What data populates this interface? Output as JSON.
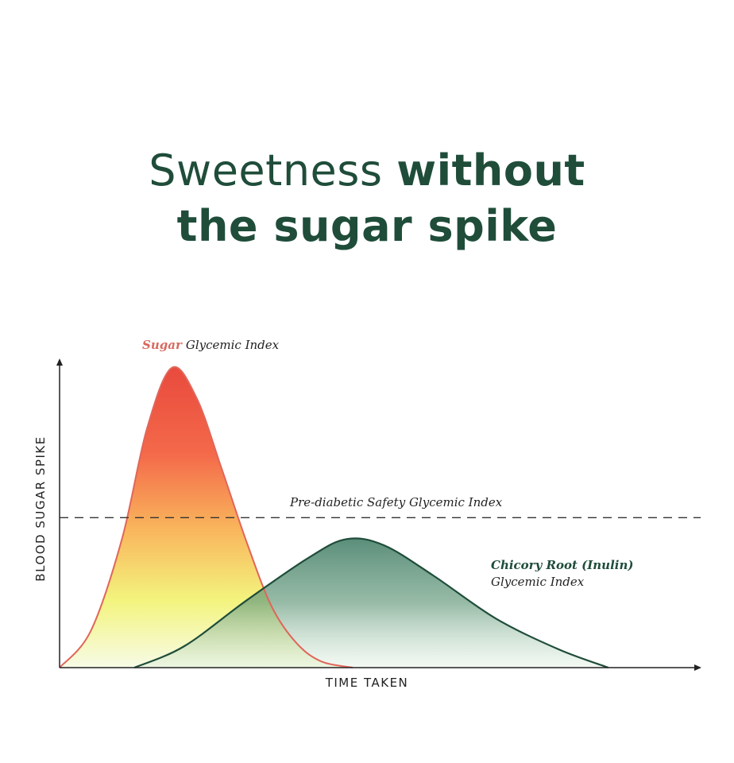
{
  "title": {
    "line1_light": "Sweetness ",
    "line1_bold": "without",
    "line2_bold": "the sugar spike"
  },
  "chart_data": {
    "type": "area",
    "xlabel": "TIME TAKEN",
    "ylabel": "BLOOD SUGAR SPIKE",
    "xlim": [
      0,
      100
    ],
    "ylim": [
      0,
      100
    ],
    "grid": false,
    "series": [
      {
        "name": "Sugar",
        "label_suffix": "Glycemic Index",
        "color": "#e0665a",
        "x": [
          0,
          5,
          10,
          14,
          18,
          22,
          26,
          30,
          34,
          38,
          42,
          47
        ],
        "y": [
          0,
          12,
          42,
          78,
          98,
          88,
          65,
          41,
          20,
          8,
          2,
          0
        ]
      },
      {
        "name": "Chicory Root (Inulin)",
        "label_suffix": "Glycemic Index",
        "color": "#1f4d3a",
        "x": [
          12,
          20,
          30,
          40,
          46,
          52,
          60,
          70,
          80,
          88
        ],
        "y": [
          0,
          7,
          22,
          36,
          42,
          40,
          30,
          16,
          6,
          0
        ]
      }
    ],
    "threshold": {
      "label": "Pre-diabetic Safety Glycemic Index",
      "y": 49
    },
    "colors": {
      "title": "#1f4d3a",
      "sugar_label": "#d86a5e",
      "axis": "#222222"
    }
  }
}
